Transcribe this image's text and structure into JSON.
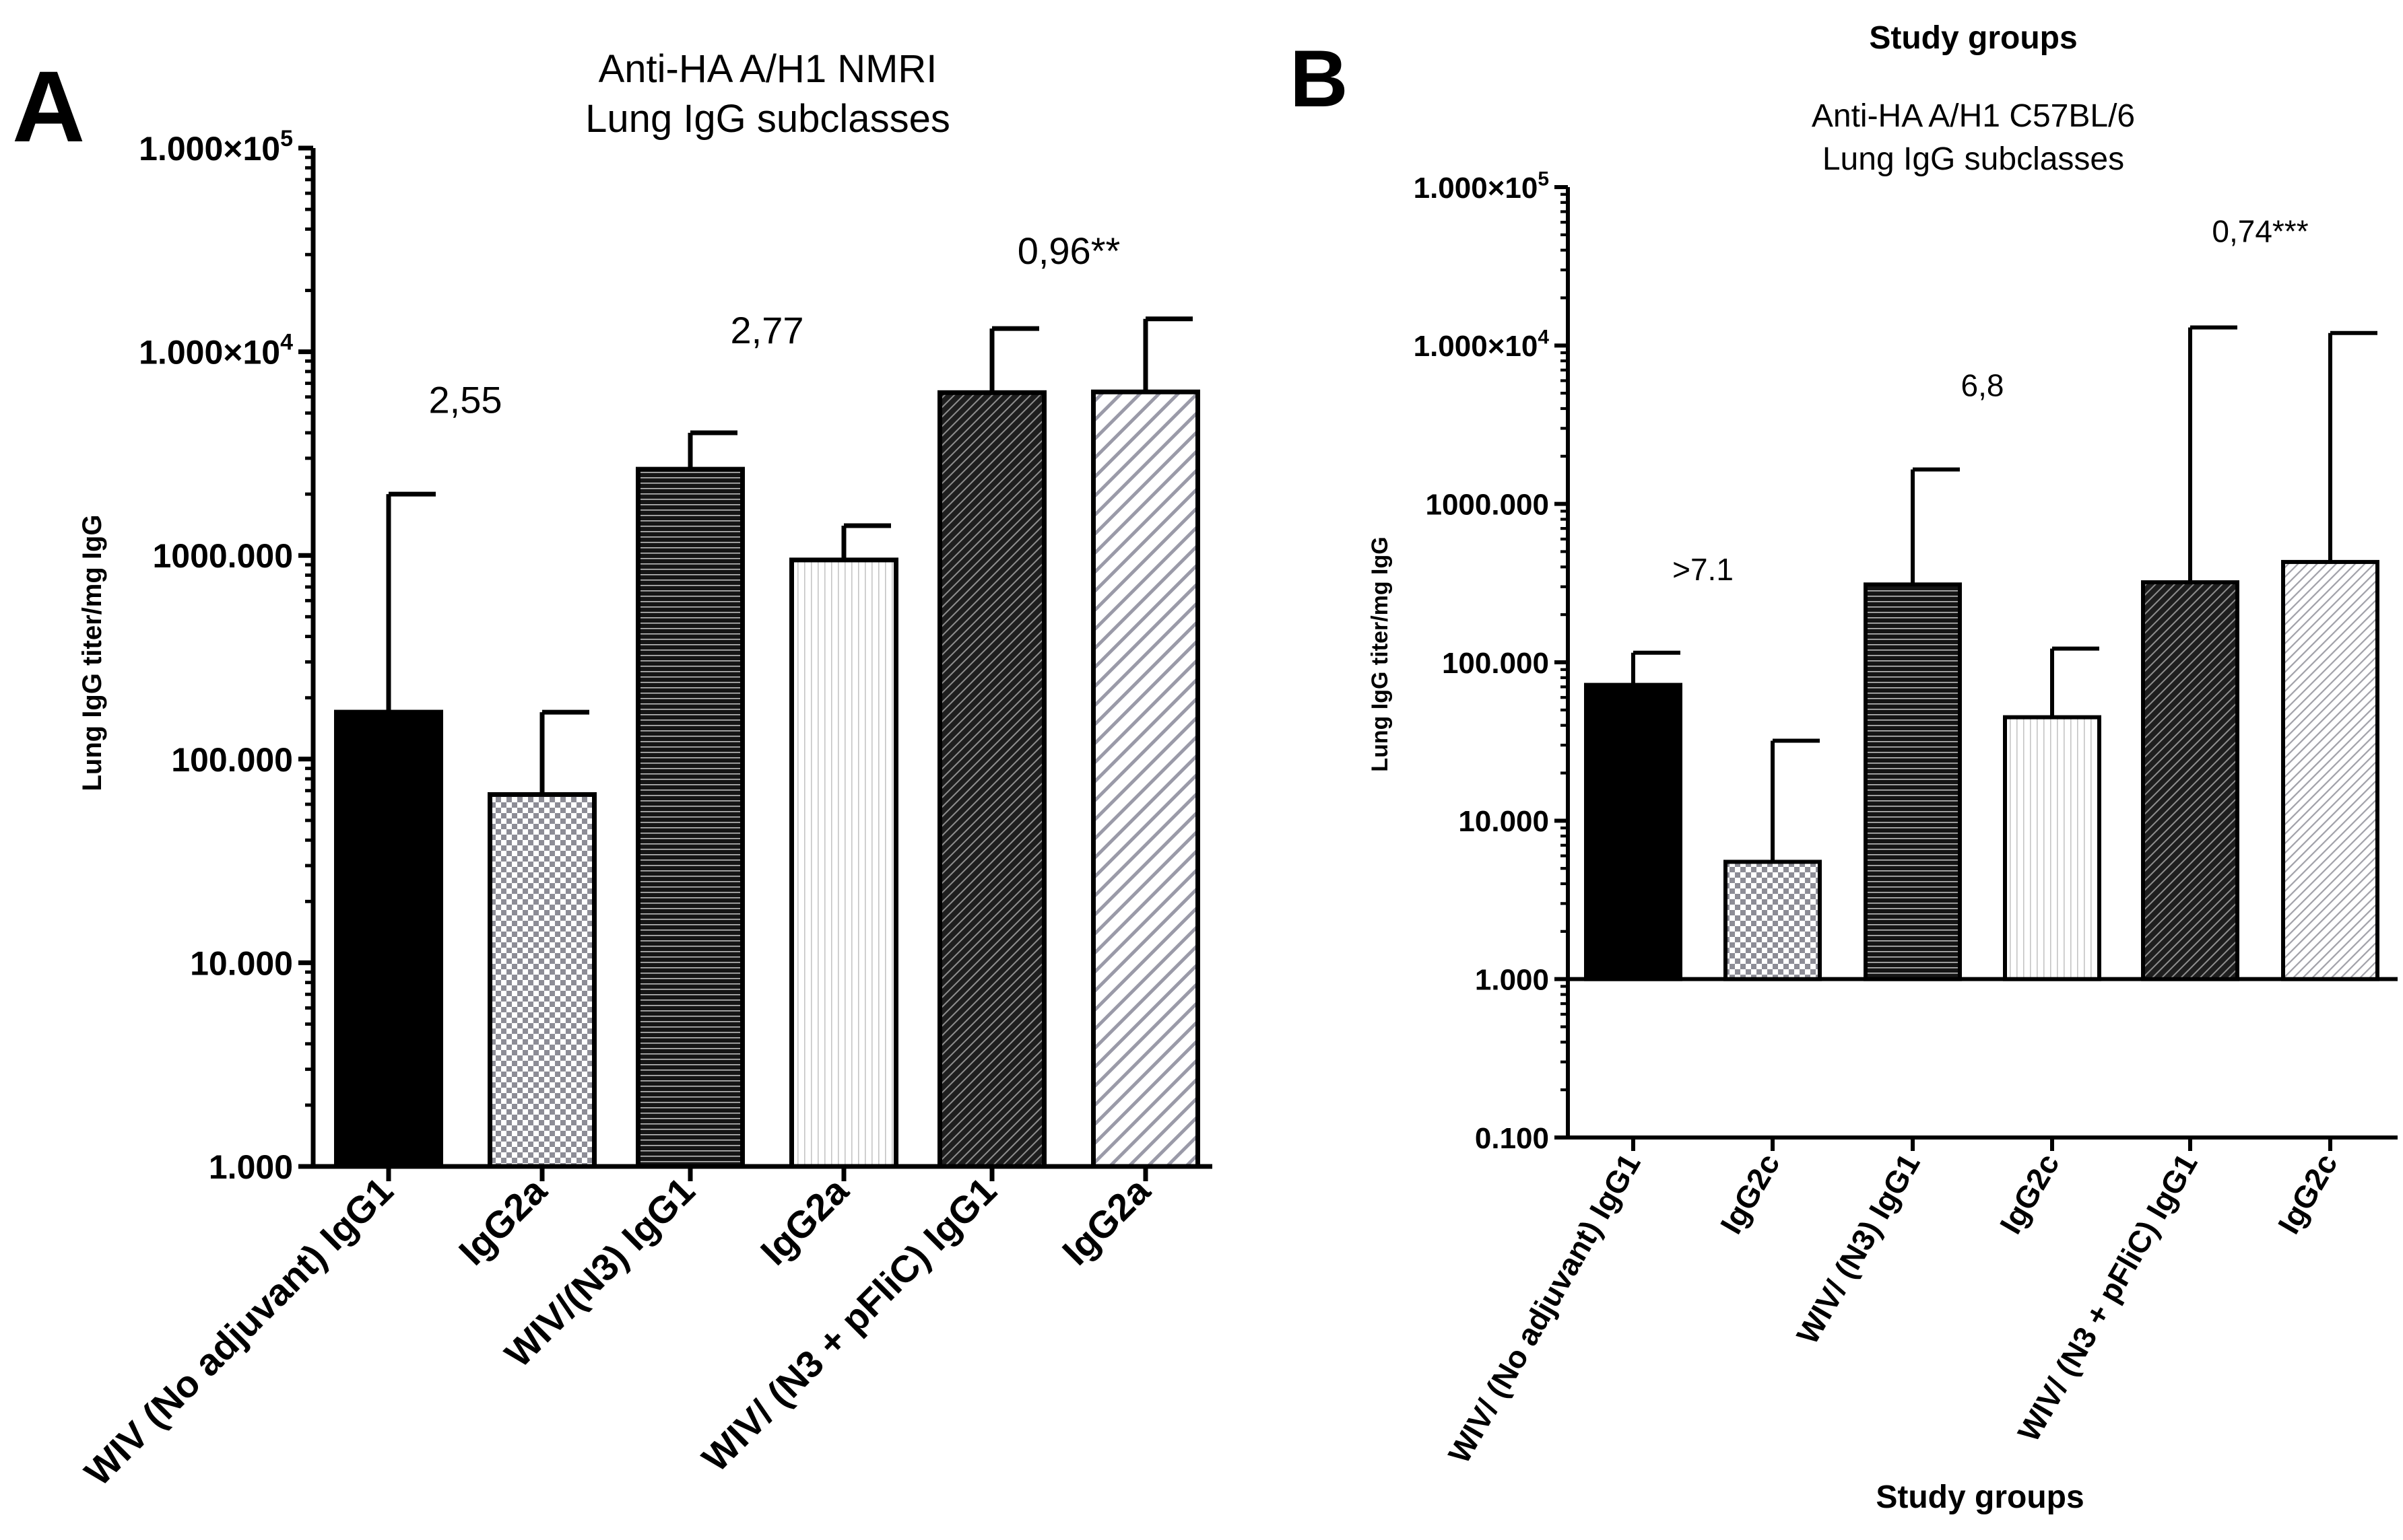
{
  "colors": {
    "black": "#000000",
    "white": "#ffffff",
    "pattern_grey": "#9a9aa6",
    "pattern_light": "#c8c8c8"
  },
  "chart_data": [
    {
      "type": "bar",
      "panel_label": "A",
      "title": "Anti-HA A/H1 NMRI",
      "subtitle": "Lung IgG subclasses",
      "xlabel": "",
      "ylabel": "Lung IgG titer/mg IgG",
      "yscale": "log",
      "ylim": [
        1,
        100000
      ],
      "y_ticks": [
        {
          "value": 1,
          "label": "1.000"
        },
        {
          "value": 10,
          "label": "10.000"
        },
        {
          "value": 100,
          "label": "100.000"
        },
        {
          "value": 1000,
          "label": "1000.000"
        },
        {
          "value": 10000,
          "label": "1.000×10",
          "exp": "4"
        },
        {
          "value": 100000,
          "label": "1.000×10",
          "exp": "5"
        }
      ],
      "categories": [
        "WIV (No adjuvant) IgG1",
        "IgG2a",
        "WIV/(N3) IgG1",
        "IgG2a",
        "WIV/ (N3 + pFliC) IgG1",
        "IgG2a"
      ],
      "patterns": [
        "solid",
        "checker",
        "hlines",
        "vlines",
        "diag-dark",
        "diag-grey"
      ],
      "values": [
        170,
        67,
        2650,
        950,
        6300,
        6350
      ],
      "error_upper": [
        2000,
        170,
        4000,
        1400,
        13000,
        14500
      ],
      "annotations": [
        {
          "text": "2,55",
          "over_pair": 0,
          "at": 5000
        },
        {
          "text": "2,77",
          "over_pair": 1,
          "at": 11000
        },
        {
          "text": "0,96**",
          "over_pair": 2,
          "at": 27000
        }
      ]
    },
    {
      "type": "bar",
      "panel_label": "B",
      "heading": "Study groups",
      "title": "Anti-HA A/H1 C57BL/6",
      "subtitle": "Lung IgG subclasses",
      "xlabel": "Study groups",
      "ylabel": "Lung IgG titer/mg IgG",
      "yscale": "log",
      "ylim": [
        0.1,
        100000
      ],
      "baseline": 1,
      "y_ticks": [
        {
          "value": 0.1,
          "label": "0.100"
        },
        {
          "value": 1,
          "label": "1.000"
        },
        {
          "value": 10,
          "label": "10.000"
        },
        {
          "value": 100,
          "label": "100.000"
        },
        {
          "value": 1000,
          "label": "1000.000"
        },
        {
          "value": 10000,
          "label": "1.000×10",
          "exp": "4"
        },
        {
          "value": 100000,
          "label": "1.000×10",
          "exp": "5"
        }
      ],
      "categories": [
        "WIV/ (No adjuvant) IgG1",
        "IgG2c",
        "WIV/ (N3) IgG1",
        "IgG2c",
        "WIV/ (N3 + pFliC) IgG1",
        "IgG2c"
      ],
      "patterns": [
        "solid",
        "checker",
        "hlines",
        "vlines",
        "diag-dark",
        "diag-fine"
      ],
      "values": [
        72,
        5.5,
        310,
        45,
        320,
        430
      ],
      "error_upper": [
        115,
        32,
        1650,
        122,
        13000,
        12000
      ],
      "annotations": [
        {
          "text": ">7.1",
          "over_pair": 0,
          "at": 330
        },
        {
          "text": "6,8",
          "over_pair": 1,
          "at": 4800
        },
        {
          "text": "0,74***",
          "over_pair": 2,
          "at": 45000
        }
      ]
    }
  ]
}
